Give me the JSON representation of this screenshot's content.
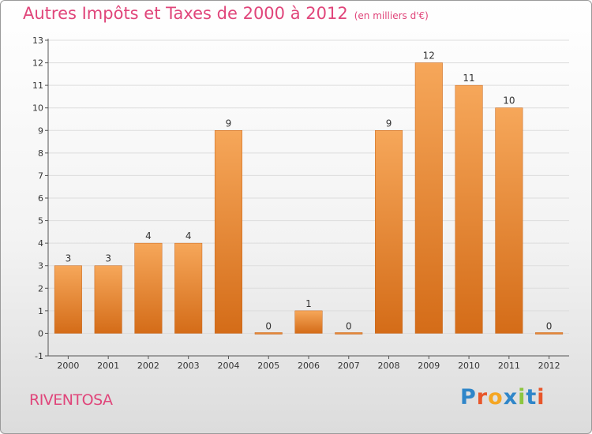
{
  "header": {
    "title": "Autres Impôts et Taxes de 2000 à 2012",
    "unit": "(en milliers d'€)"
  },
  "footer": {
    "commune": "RIVENTOSA",
    "brand": "Proxiti"
  },
  "colors": {
    "title": "#e0457a",
    "bar_top": "#f6a75a",
    "bar_bottom": "#d46c18",
    "axis": "#555555",
    "grid": "#dddddd",
    "brand_letters": [
      "#2f86c9",
      "#e8562a",
      "#f5a623",
      "#2f86c9",
      "#8cc63f",
      "#2f86c9",
      "#e8562a"
    ]
  },
  "chart_data": {
    "type": "bar",
    "title": "Autres Impôts et Taxes de 2000 à 2012",
    "subtitle": "(en milliers d'€)",
    "xlabel": "",
    "ylabel": "",
    "categories": [
      "2000",
      "2001",
      "2002",
      "2003",
      "2004",
      "2005",
      "2006",
      "2007",
      "2008",
      "2009",
      "2010",
      "2011",
      "2012"
    ],
    "values": [
      3,
      3,
      4,
      4,
      9,
      0,
      1,
      0,
      9,
      12,
      11,
      10,
      0
    ],
    "data_labels": [
      "3",
      "3",
      "4",
      "4",
      "9",
      "0",
      "1",
      "0",
      "9",
      "12",
      "11",
      "10",
      "0"
    ],
    "ylim": [
      -1,
      13
    ],
    "yticks": [
      -1,
      0,
      1,
      2,
      3,
      4,
      5,
      6,
      7,
      8,
      9,
      10,
      11,
      12,
      13
    ],
    "grid": true,
    "legend": "none"
  }
}
